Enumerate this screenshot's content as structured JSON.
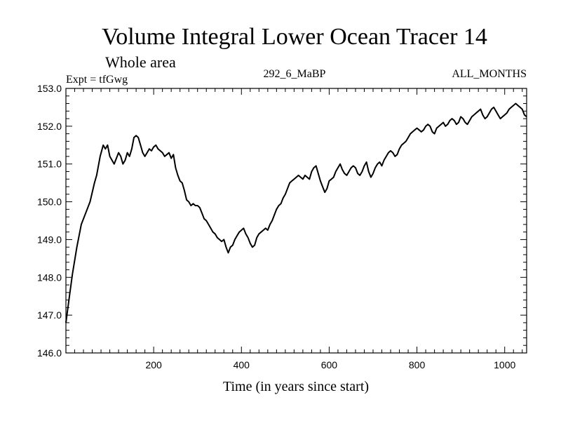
{
  "chart_data": {
    "type": "line",
    "title": "Volume Integral Lower Ocean Tracer 14",
    "subtitle": "Whole area",
    "experiment_label": "Expt = tfGwg",
    "center_label": "292_6_MaBP",
    "right_label": "ALL_MONTHS",
    "xlabel": "Time (in years since start)",
    "ylabel": "",
    "xlim": [
      0,
      1050
    ],
    "ylim": [
      146.0,
      153.0
    ],
    "x_ticks": [
      200,
      400,
      600,
      800,
      1000
    ],
    "x_tick_labels": [
      "200",
      "400",
      "600",
      "800",
      "1000"
    ],
    "y_ticks": [
      146.0,
      147.0,
      148.0,
      149.0,
      150.0,
      151.0,
      152.0,
      153.0
    ],
    "y_tick_labels": [
      "146.0",
      "147.0",
      "148.0",
      "149.0",
      "150.0",
      "151.0",
      "152.0",
      "153.0"
    ],
    "grid": false,
    "series": [
      {
        "name": "tracer14",
        "color": "#000000",
        "x": [
          0,
          8,
          15,
          25,
          35,
          45,
          55,
          65,
          70,
          78,
          85,
          90,
          95,
          100,
          110,
          120,
          125,
          130,
          135,
          140,
          145,
          150,
          155,
          160,
          165,
          170,
          175,
          180,
          185,
          190,
          195,
          200,
          205,
          210,
          215,
          220,
          225,
          230,
          235,
          240,
          245,
          250,
          255,
          260,
          265,
          270,
          275,
          280,
          285,
          290,
          295,
          300,
          305,
          310,
          315,
          320,
          325,
          330,
          335,
          340,
          345,
          350,
          355,
          360,
          365,
          370,
          375,
          380,
          385,
          390,
          395,
          400,
          405,
          410,
          415,
          420,
          425,
          430,
          435,
          440,
          445,
          450,
          455,
          460,
          465,
          470,
          475,
          480,
          485,
          490,
          495,
          500,
          505,
          510,
          515,
          520,
          525,
          530,
          535,
          540,
          545,
          550,
          555,
          560,
          565,
          570,
          575,
          580,
          585,
          590,
          595,
          600,
          605,
          610,
          615,
          620,
          625,
          630,
          635,
          640,
          645,
          650,
          655,
          660,
          665,
          670,
          675,
          680,
          685,
          690,
          695,
          700,
          705,
          710,
          715,
          720,
          725,
          730,
          735,
          740,
          745,
          750,
          755,
          760,
          765,
          770,
          775,
          780,
          785,
          790,
          795,
          800,
          805,
          810,
          815,
          820,
          825,
          830,
          835,
          840,
          845,
          850,
          855,
          860,
          865,
          870,
          875,
          880,
          885,
          890,
          895,
          900,
          905,
          910,
          915,
          920,
          925,
          930,
          935,
          940,
          945,
          950,
          955,
          960,
          965,
          970,
          975,
          980,
          985,
          990,
          995,
          1000,
          1005,
          1010,
          1015,
          1020,
          1025,
          1030,
          1035,
          1040,
          1045,
          1050
        ],
        "values": [
          146.8,
          147.5,
          148.1,
          148.8,
          149.4,
          149.7,
          150.0,
          150.5,
          150.7,
          151.2,
          151.5,
          151.4,
          151.5,
          151.2,
          151.0,
          151.3,
          151.2,
          151.0,
          151.1,
          151.3,
          151.2,
          151.4,
          151.7,
          151.75,
          151.7,
          151.5,
          151.3,
          151.2,
          151.3,
          151.4,
          151.35,
          151.45,
          151.5,
          151.4,
          151.35,
          151.3,
          151.2,
          151.25,
          151.3,
          151.15,
          151.25,
          150.9,
          150.7,
          150.55,
          150.5,
          150.3,
          150.05,
          150.0,
          149.9,
          149.95,
          149.9,
          149.9,
          149.85,
          149.7,
          149.55,
          149.5,
          149.4,
          149.3,
          149.2,
          149.15,
          149.05,
          149.0,
          148.95,
          149.0,
          148.8,
          148.65,
          148.8,
          148.85,
          149.0,
          149.1,
          149.2,
          149.25,
          149.3,
          149.15,
          149.05,
          148.9,
          148.8,
          148.85,
          149.05,
          149.15,
          149.2,
          149.25,
          149.3,
          149.25,
          149.4,
          149.5,
          149.65,
          149.8,
          149.9,
          149.95,
          150.1,
          150.2,
          150.35,
          150.5,
          150.55,
          150.6,
          150.65,
          150.7,
          150.65,
          150.6,
          150.7,
          150.65,
          150.6,
          150.8,
          150.9,
          150.95,
          150.75,
          150.55,
          150.4,
          150.25,
          150.35,
          150.55,
          150.6,
          150.65,
          150.8,
          150.9,
          151.0,
          150.85,
          150.75,
          150.7,
          150.8,
          150.9,
          150.95,
          150.9,
          150.75,
          150.7,
          150.8,
          150.95,
          151.05,
          150.8,
          150.65,
          150.75,
          150.9,
          151.0,
          151.05,
          150.95,
          151.1,
          151.2,
          151.3,
          151.35,
          151.3,
          151.2,
          151.25,
          151.4,
          151.5,
          151.55,
          151.6,
          151.7,
          151.8,
          151.85,
          151.9,
          151.95,
          151.9,
          151.85,
          151.9,
          152.0,
          152.05,
          152.0,
          151.85,
          151.8,
          151.95,
          152.0,
          152.05,
          152.1,
          152.0,
          152.05,
          152.15,
          152.2,
          152.15,
          152.05,
          152.1,
          152.25,
          152.2,
          152.1,
          152.05,
          152.15,
          152.25,
          152.3,
          152.35,
          152.4,
          152.45,
          152.3,
          152.2,
          152.25,
          152.35,
          152.45,
          152.5,
          152.4,
          152.3,
          152.2,
          152.25,
          152.3,
          152.35,
          152.45,
          152.5,
          152.55,
          152.6,
          152.55,
          152.5,
          152.45,
          152.3,
          152.25
        ]
      }
    ]
  }
}
